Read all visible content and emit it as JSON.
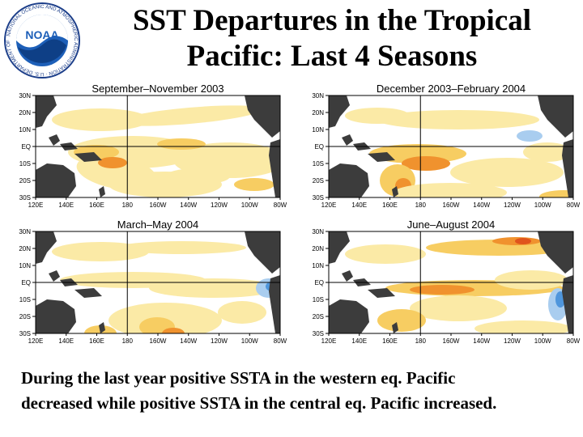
{
  "title_line1": "SST Departures in the Tropical",
  "title_line2": "Pacific: Last 4 Seasons",
  "logo_text": "NATIONAL OCEANIC AND ATMOSPHERIC ADMINISTRATION · U.S. DEPARTMENT OF COMMERCE",
  "logo_label": "NOAA",
  "caption_line1": "During the last year positive SSTA in the western eq. Pacific",
  "caption_line2": "decreased while positive SSTA in the central eq. Pacific increased.",
  "lat_labels": [
    "30N",
    "20N",
    "10N",
    "EQ",
    "10S",
    "20S",
    "30S"
  ],
  "lon_labels": [
    "120E",
    "140E",
    "160E",
    "180",
    "160W",
    "140W",
    "120W",
    "100W",
    "80W"
  ],
  "colors": {
    "weak_warm": "#fbeaa6",
    "moderate_warm": "#f7cd62",
    "strong_warm": "#f0922e",
    "very_warm": "#e0541c",
    "cool": "#a9cdef",
    "strong_cool": "#4f96dc",
    "land": "#3c3c3c",
    "ocean": "#ffffff"
  },
  "panels": [
    {
      "season": "September–November 2003"
    },
    {
      "season": "December 2003–February 2004"
    },
    {
      "season": "March–May 2004"
    },
    {
      "season": "June–August 2004"
    }
  ]
}
